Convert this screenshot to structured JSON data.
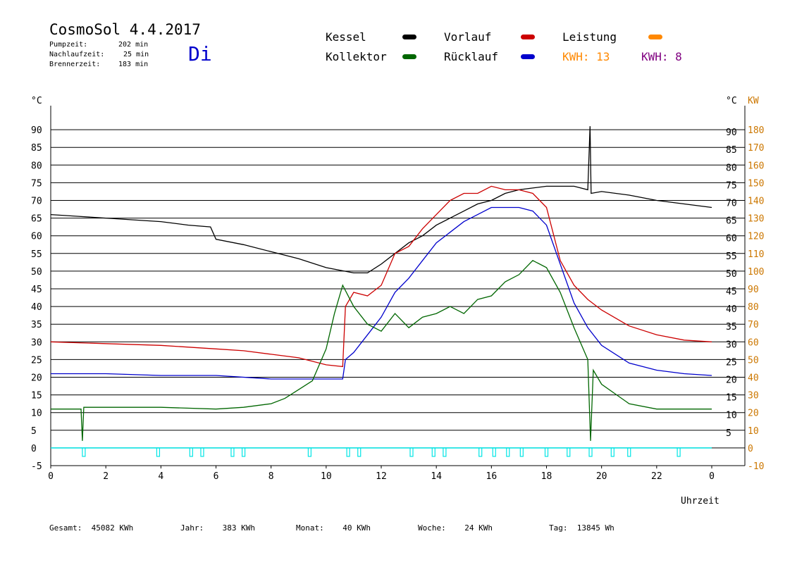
{
  "header": {
    "title": "CosmoSol 4.4.2017",
    "pumpzeit_label": "Pumpzeit:",
    "pumpzeit_value": "202 min",
    "nachlauf_label": "Nachlaufzeit:",
    "nachlauf_value": "25 min",
    "brenner_label": "Brennerzeit:",
    "brenner_value": "183 min",
    "day": "Di"
  },
  "legend": {
    "kessel": "Kessel",
    "kollektor": "Kollektor",
    "vorlauf": "Vorlauf",
    "ruecklauf": "Rücklauf",
    "leistung": "Leistung",
    "kwh_orange": "KWH: 13",
    "kwh_purple": "KWH: 8"
  },
  "colors": {
    "kessel": "#000000",
    "kollektor": "#006600",
    "vorlauf": "#cc0000",
    "ruecklauf": "#0000cc",
    "leistung": "#ff8800",
    "kwh_purple": "#800080",
    "pump": "#00e5e5",
    "axis_right": "#cc7700"
  },
  "footer": {
    "gesamt": "Gesamt:  45082 KWh",
    "jahr": "Jahr:    383 KWh",
    "monat": "Monat:    40 KWh",
    "woche": "Woche:    24 KWh",
    "tag": "Tag:  13845 Wh"
  },
  "chart_data": {
    "type": "line",
    "xlabel": "Uhrzeit",
    "ylabel_left": "°C",
    "ylabel_right_1": "°C",
    "ylabel_right_2": "KW",
    "xlim": [
      0,
      24
    ],
    "ylim": [
      -5,
      95
    ],
    "x_ticks": [
      "0",
      "2",
      "4",
      "6",
      "8",
      "10",
      "12",
      "14",
      "16",
      "18",
      "20",
      "22",
      "0"
    ],
    "y_ticks_left": [
      "-5",
      "0",
      "5",
      "10",
      "15",
      "20",
      "25",
      "30",
      "35",
      "40",
      "45",
      "50",
      "55",
      "60",
      "65",
      "70",
      "75",
      "80",
      "85",
      "90"
    ],
    "y_ticks_right": [
      "5",
      "10",
      "15",
      "20",
      "25",
      "30",
      "35",
      "40",
      "45",
      "50",
      "55",
      "60",
      "65",
      "70",
      "75",
      "80",
      "85",
      "90"
    ],
    "kw_ticks": [
      "-10",
      "0",
      "10",
      "20",
      "30",
      "40",
      "50",
      "60",
      "70",
      "80",
      "90",
      "100",
      "110",
      "120",
      "130",
      "140",
      "150",
      "160",
      "170",
      "180"
    ],
    "grid": true,
    "series": [
      {
        "name": "Kessel",
        "color": "#000000",
        "points": [
          [
            0,
            66
          ],
          [
            1,
            65.5
          ],
          [
            2,
            65
          ],
          [
            3,
            64.5
          ],
          [
            4,
            64
          ],
          [
            5,
            63
          ],
          [
            5.8,
            62.5
          ],
          [
            6,
            59
          ],
          [
            7,
            57.5
          ],
          [
            8,
            55.5
          ],
          [
            9,
            53.5
          ],
          [
            10,
            51
          ],
          [
            11,
            49.5
          ],
          [
            11.5,
            49.5
          ],
          [
            12,
            52
          ],
          [
            12.5,
            55
          ],
          [
            13,
            58
          ],
          [
            13.5,
            60
          ],
          [
            14,
            63
          ],
          [
            14.5,
            65
          ],
          [
            15,
            67
          ],
          [
            15.5,
            69
          ],
          [
            16,
            70
          ],
          [
            16.5,
            72
          ],
          [
            17,
            73
          ],
          [
            17.5,
            73.5
          ],
          [
            18,
            74
          ],
          [
            19,
            74
          ],
          [
            19.5,
            73
          ],
          [
            19.58,
            91
          ],
          [
            19.62,
            72
          ],
          [
            20,
            72.5
          ],
          [
            21,
            71.5
          ],
          [
            22,
            70
          ],
          [
            23,
            69
          ],
          [
            24,
            68
          ]
        ]
      },
      {
        "name": "Vorlauf",
        "color": "#cc0000",
        "points": [
          [
            0,
            30
          ],
          [
            2,
            29.5
          ],
          [
            4,
            29
          ],
          [
            6,
            28
          ],
          [
            7,
            27.5
          ],
          [
            8,
            26.5
          ],
          [
            9,
            25.5
          ],
          [
            10,
            23.5
          ],
          [
            10.6,
            23
          ],
          [
            10.7,
            40
          ],
          [
            11,
            44
          ],
          [
            11.5,
            43
          ],
          [
            12,
            46
          ],
          [
            12.5,
            55
          ],
          [
            13,
            57
          ],
          [
            13.5,
            62
          ],
          [
            14,
            66
          ],
          [
            14.5,
            70
          ],
          [
            15,
            72
          ],
          [
            15.5,
            72
          ],
          [
            16,
            74
          ],
          [
            16.5,
            73
          ],
          [
            17,
            73
          ],
          [
            17.5,
            72
          ],
          [
            18,
            68
          ],
          [
            18.5,
            53
          ],
          [
            19,
            46
          ],
          [
            19.5,
            42
          ],
          [
            20,
            39
          ],
          [
            21,
            34.5
          ],
          [
            22,
            32
          ],
          [
            23,
            30.5
          ],
          [
            24,
            30
          ]
        ]
      },
      {
        "name": "Rücklauf",
        "color": "#0000cc",
        "points": [
          [
            0,
            21
          ],
          [
            2,
            21
          ],
          [
            4,
            20.5
          ],
          [
            6,
            20.5
          ],
          [
            8,
            19.5
          ],
          [
            9,
            19.5
          ],
          [
            10,
            19.5
          ],
          [
            10.6,
            19.5
          ],
          [
            10.7,
            25
          ],
          [
            11,
            27
          ],
          [
            11.5,
            32
          ],
          [
            12,
            37
          ],
          [
            12.5,
            44
          ],
          [
            13,
            48
          ],
          [
            13.5,
            53
          ],
          [
            14,
            58
          ],
          [
            14.5,
            61
          ],
          [
            15,
            64
          ],
          [
            15.5,
            66
          ],
          [
            16,
            68
          ],
          [
            16.5,
            68
          ],
          [
            17,
            68
          ],
          [
            17.5,
            67
          ],
          [
            18,
            63
          ],
          [
            18.5,
            52
          ],
          [
            19,
            41
          ],
          [
            19.5,
            34
          ],
          [
            20,
            29
          ],
          [
            21,
            24
          ],
          [
            22,
            22
          ],
          [
            23,
            21
          ],
          [
            24,
            20.5
          ]
        ]
      },
      {
        "name": "Kollektor",
        "color": "#006600",
        "points": [
          [
            0,
            11
          ],
          [
            1.1,
            11
          ],
          [
            1.15,
            2
          ],
          [
            1.2,
            11.5
          ],
          [
            2,
            11.5
          ],
          [
            4,
            11.5
          ],
          [
            6,
            11
          ],
          [
            7,
            11.5
          ],
          [
            8,
            12.5
          ],
          [
            8.5,
            14
          ],
          [
            9,
            16.5
          ],
          [
            9.5,
            19
          ],
          [
            10,
            28
          ],
          [
            10.3,
            38
          ],
          [
            10.6,
            46
          ],
          [
            11,
            40
          ],
          [
            11.5,
            35
          ],
          [
            12,
            33
          ],
          [
            12.5,
            38
          ],
          [
            13,
            34
          ],
          [
            13.5,
            37
          ],
          [
            14,
            38
          ],
          [
            14.5,
            40
          ],
          [
            15,
            38
          ],
          [
            15.5,
            42
          ],
          [
            16,
            43
          ],
          [
            16.5,
            47
          ],
          [
            17,
            49
          ],
          [
            17.5,
            53
          ],
          [
            18,
            51
          ],
          [
            18.5,
            44
          ],
          [
            19,
            34
          ],
          [
            19.5,
            25
          ],
          [
            19.6,
            2
          ],
          [
            19.7,
            22
          ],
          [
            20,
            18
          ],
          [
            21,
            12.5
          ],
          [
            22,
            11
          ],
          [
            23,
            11
          ],
          [
            24,
            11
          ]
        ]
      }
    ],
    "pump_pulses_hours": [
      1.2,
      3.9,
      5.1,
      5.5,
      6.6,
      7.0,
      9.4,
      10.8,
      11.2,
      13.1,
      13.9,
      14.3,
      15.6,
      16.1,
      16.6,
      17.1,
      18.0,
      18.8,
      19.6,
      20.4,
      21.0,
      22.8
    ]
  }
}
